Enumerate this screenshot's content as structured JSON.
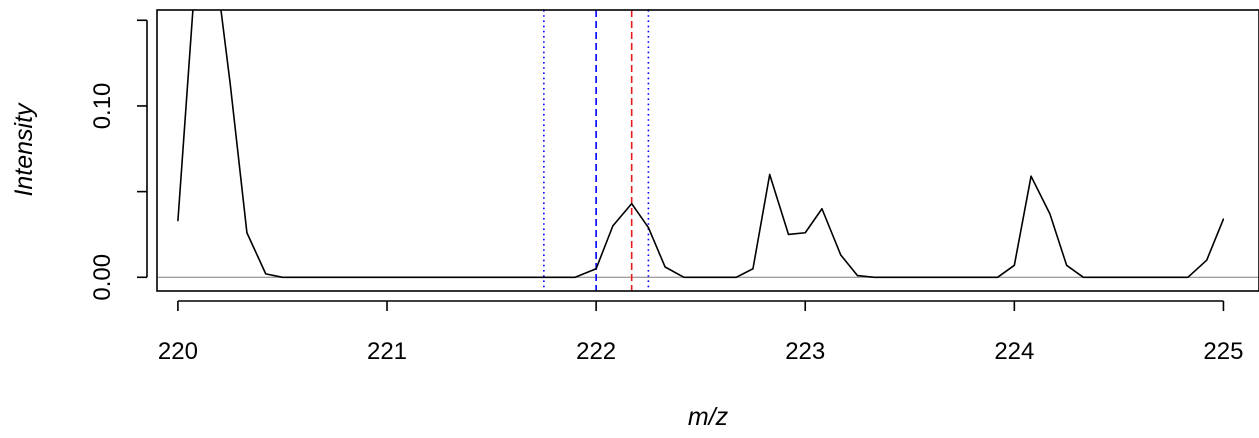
{
  "chart_data": {
    "type": "line",
    "title": "",
    "xlabel": "m/z",
    "ylabel": "Intensity",
    "xlim": [
      219.9,
      225.17
    ],
    "ylim": [
      -0.008,
      0.156
    ],
    "x_ticks": [
      220,
      221,
      222,
      223,
      224,
      225
    ],
    "x_tick_labels": [
      "220",
      "221",
      "222",
      "223",
      "224",
      "225"
    ],
    "y_ticks": [
      0.0,
      0.05,
      0.1,
      0.15
    ],
    "y_tick_labels": [
      "0.00",
      "",
      "0.10",
      ""
    ],
    "grid": false,
    "legend": "none",
    "baseline": {
      "y": 0,
      "color": "#808080"
    },
    "series": [
      {
        "color": "#000000",
        "x": [
          220.0,
          220.085,
          220.17,
          220.25,
          220.33,
          220.42,
          220.5,
          220.6,
          220.7,
          220.8,
          220.9,
          221.0,
          221.1,
          221.2,
          221.3,
          221.4,
          221.5,
          221.6,
          221.7,
          221.8,
          221.9,
          222.0,
          222.08,
          222.17,
          222.25,
          222.33,
          222.42,
          222.5,
          222.58,
          222.67,
          222.75,
          222.83,
          222.92,
          223.0,
          223.08,
          223.17,
          223.25,
          223.33,
          223.42,
          223.5,
          223.6,
          223.7,
          223.8,
          223.92,
          224.0,
          224.08,
          224.17,
          224.25,
          224.33,
          224.42,
          224.5,
          224.6,
          224.7,
          224.83,
          224.92,
          225.0
        ],
        "y": [
          0.033,
          0.179,
          0.191,
          0.113,
          0.026,
          0.002,
          0.0,
          0.0,
          0.0,
          0.0,
          0.0,
          0.0,
          0.0,
          0.0,
          0.0,
          0.0,
          0.0,
          0.0,
          0.0,
          0.0,
          0.0,
          0.005,
          0.03,
          0.043,
          0.029,
          0.006,
          0.0,
          0.0,
          0.0,
          0.0,
          0.005,
          0.06,
          0.025,
          0.026,
          0.04,
          0.013,
          0.001,
          0.0,
          0.0,
          0.0,
          0.0,
          0.0,
          0.0,
          0.0,
          0.007,
          0.059,
          0.037,
          0.007,
          0.0,
          0.0,
          0.0,
          0.0,
          0.0,
          0.0,
          0.01,
          0.034
        ]
      }
    ],
    "vlines": [
      {
        "x": 221.75,
        "color": "#0000ff",
        "style": "dotted"
      },
      {
        "x": 222.0,
        "color": "#0000ff",
        "style": "dashed"
      },
      {
        "x": 222.17,
        "color": "#e41a1c",
        "style": "dashed"
      },
      {
        "x": 222.25,
        "color": "#0000ff",
        "style": "dotted"
      }
    ]
  }
}
